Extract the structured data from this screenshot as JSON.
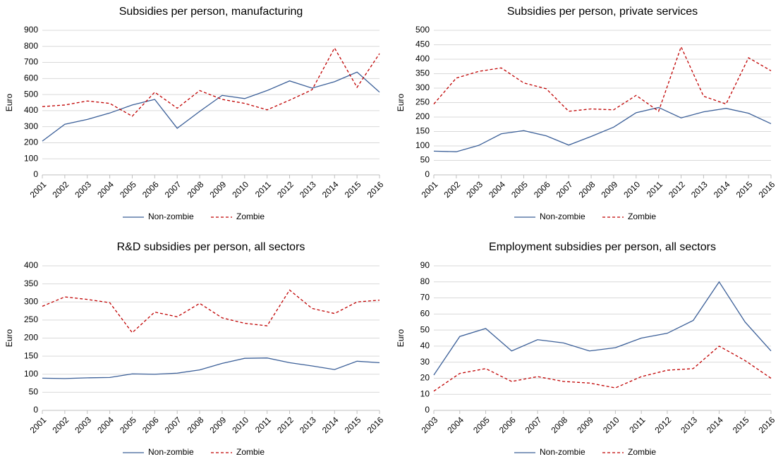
{
  "chart_data": [
    {
      "type": "line",
      "title": "Subsidies per person, manufacturing",
      "y_label": "Euro",
      "categories": [
        "2001",
        "2002",
        "2003",
        "2004",
        "2005",
        "2006",
        "2007",
        "2008",
        "2009",
        "2010",
        "2011",
        "2012",
        "2013",
        "2014",
        "2015",
        "2016"
      ],
      "series": [
        {
          "name": "Non-zombie",
          "color": "#3b5f98",
          "line_style": "solid",
          "values": [
            210,
            315,
            345,
            385,
            435,
            470,
            290,
            395,
            495,
            475,
            525,
            585,
            540,
            580,
            640,
            515
          ]
        },
        {
          "name": "Zombie",
          "color": "#c00000",
          "line_style": "dashed",
          "values": [
            425,
            435,
            460,
            445,
            365,
            515,
            415,
            525,
            470,
            445,
            405,
            465,
            530,
            790,
            545,
            755
          ]
        }
      ],
      "ylim": [
        0,
        900
      ],
      "yticks": [
        0,
        100,
        200,
        300,
        400,
        500,
        600,
        700,
        800,
        900
      ],
      "grid": true,
      "legend": "bottom"
    },
    {
      "type": "line",
      "title": "Subsidies per person, private services",
      "y_label": "Euro",
      "categories": [
        "2001",
        "2002",
        "2003",
        "2004",
        "2005",
        "2006",
        "2007",
        "2008",
        "2009",
        "2010",
        "2011",
        "2012",
        "2013",
        "2014",
        "2015",
        "2016"
      ],
      "series": [
        {
          "name": "Non-zombie",
          "color": "#3b5f98",
          "line_style": "solid",
          "values": [
            82,
            80,
            102,
            142,
            153,
            135,
            103,
            133,
            165,
            215,
            233,
            197,
            218,
            230,
            213,
            177
          ]
        },
        {
          "name": "Zombie",
          "color": "#c00000",
          "line_style": "dashed",
          "values": [
            245,
            335,
            358,
            370,
            318,
            298,
            220,
            228,
            225,
            275,
            220,
            443,
            272,
            245,
            405,
            360
          ]
        }
      ],
      "ylim": [
        0,
        500
      ],
      "yticks": [
        0,
        50,
        100,
        150,
        200,
        250,
        300,
        350,
        400,
        450,
        500
      ],
      "grid": true,
      "legend": "bottom"
    },
    {
      "type": "line",
      "title": "R&D subsidies per person, all sectors",
      "y_label": "Euro",
      "categories": [
        "2001",
        "2002",
        "2003",
        "2004",
        "2005",
        "2006",
        "2007",
        "2008",
        "2009",
        "2010",
        "2011",
        "2012",
        "2013",
        "2014",
        "2015",
        "2016"
      ],
      "series": [
        {
          "name": "Non-zombie",
          "color": "#3b5f98",
          "line_style": "solid",
          "values": [
            89,
            88,
            90,
            91,
            101,
            100,
            103,
            112,
            130,
            144,
            145,
            132,
            123,
            113,
            136,
            132
          ]
        },
        {
          "name": "Zombie",
          "color": "#c00000",
          "line_style": "dashed",
          "values": [
            288,
            314,
            307,
            298,
            215,
            272,
            259,
            296,
            256,
            241,
            234,
            333,
            282,
            268,
            300,
            305
          ]
        }
      ],
      "ylim": [
        0,
        400
      ],
      "yticks": [
        0,
        50,
        100,
        150,
        200,
        250,
        300,
        350,
        400
      ],
      "grid": true,
      "legend": "bottom"
    },
    {
      "type": "line",
      "title": "Employment subsidies per person, all sectors",
      "y_label": "Euro",
      "categories": [
        "2003",
        "2004",
        "2005",
        "2006",
        "2007",
        "2008",
        "2009",
        "2010",
        "2011",
        "2012",
        "2013",
        "2014",
        "2015",
        "2016"
      ],
      "series": [
        {
          "name": "Non-zombie",
          "color": "#3b5f98",
          "line_style": "solid",
          "values": [
            22,
            46,
            51,
            37,
            44,
            42,
            37,
            39,
            45,
            48,
            56,
            80,
            55,
            37
          ]
        },
        {
          "name": "Zombie",
          "color": "#c00000",
          "line_style": "dashed",
          "values": [
            12,
            23,
            26,
            18,
            21,
            18,
            17,
            14,
            21,
            25,
            26,
            40,
            31,
            20
          ]
        }
      ],
      "ylim": [
        0,
        90
      ],
      "yticks": [
        0,
        10,
        20,
        30,
        40,
        50,
        60,
        70,
        80,
        90
      ],
      "grid": true,
      "legend": "bottom"
    }
  ]
}
